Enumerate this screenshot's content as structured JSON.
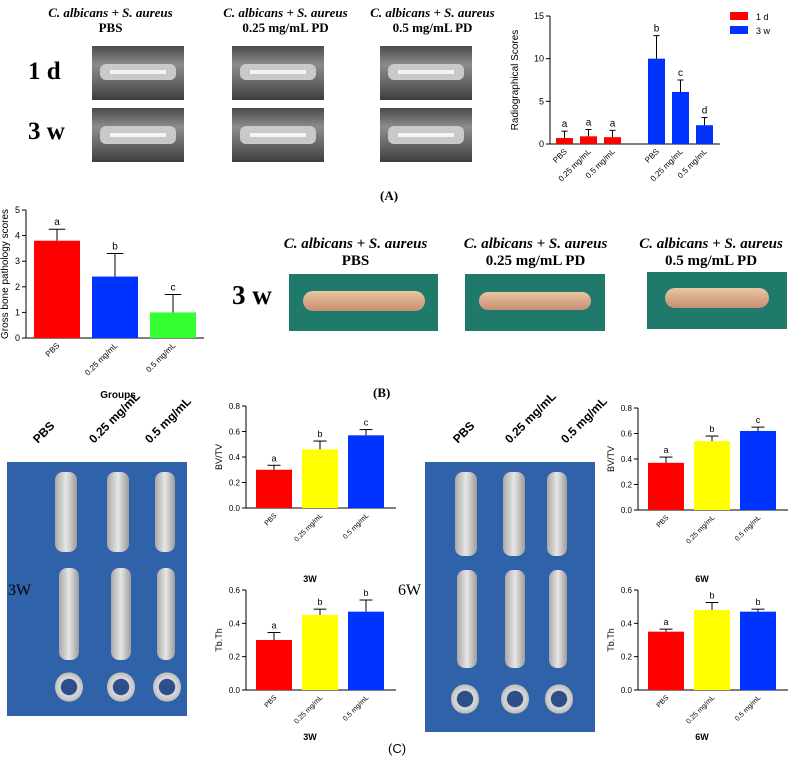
{
  "panelA": {
    "header_prefix": "C. albicans + S. aureus",
    "columns": [
      "PBS",
      "0.25 mg/mL PD",
      "0.5 mg/mL PD"
    ],
    "rows": [
      "1 d",
      "3 w"
    ],
    "caption": "(A)"
  },
  "panelB": {
    "header_prefix": "C. albicans + S. aureus",
    "columns": [
      "PBS",
      "0.25 mg/mL PD",
      "0.5 mg/mL PD"
    ],
    "row_label": "3 w",
    "caption": "(B)"
  },
  "panelC": {
    "groups": [
      "PBS",
      "0.25 mg/mL",
      "0.5 mg/mL"
    ],
    "label_3w": "3W",
    "label_6w": "6W",
    "caption": "(C)"
  },
  "colors": {
    "red": "#ff0000",
    "blue": "#0033ff",
    "green": "#33ff33",
    "yellow": "#ffff00"
  },
  "chart_data": [
    {
      "id": "radiographical",
      "type": "bar",
      "title": "",
      "ylabel": "Radiographical Scores",
      "xlabel": "",
      "ylim": [
        0,
        15
      ],
      "yticks": [
        0,
        5,
        10,
        15
      ],
      "legend": "top-right",
      "series": [
        {
          "name": "1 d",
          "color": "#ff0000",
          "categories": [
            "PBS",
            "0.25 mg/mL",
            "0.5 mg/mL"
          ],
          "values": [
            0.7,
            0.9,
            0.8
          ],
          "errors": [
            0.8,
            0.8,
            0.8
          ],
          "letters": [
            "a",
            "a",
            "a"
          ]
        },
        {
          "name": "3 w",
          "color": "#0033ff",
          "categories": [
            "PBS",
            "0.25 mg/mL",
            "0.5 mg/mL"
          ],
          "values": [
            10.0,
            6.1,
            2.2
          ],
          "errors": [
            2.7,
            1.4,
            0.9
          ],
          "letters": [
            "b",
            "c",
            "d"
          ]
        }
      ]
    },
    {
      "id": "gross",
      "type": "bar",
      "title": "",
      "ylabel": "Gross bone pathology scores",
      "xlabel": "Groups",
      "ylim": [
        0,
        5
      ],
      "yticks": [
        0,
        1,
        2,
        3,
        4,
        5
      ],
      "categories": [
        "PBS",
        "0.25 mg/mL",
        "0.5 mg/mL"
      ],
      "values": [
        3.8,
        2.4,
        1.0
      ],
      "errors": [
        0.45,
        0.9,
        0.7
      ],
      "letters": [
        "a",
        "b",
        "c"
      ],
      "colors": [
        "#ff0000",
        "#0033ff",
        "#33ff33"
      ]
    },
    {
      "id": "bvtv3",
      "type": "bar",
      "title": "",
      "ylabel": "BV/TV",
      "xlabel": "",
      "ylim": [
        0,
        0.8
      ],
      "yticks": [
        0.0,
        0.2,
        0.4,
        0.6,
        0.8
      ],
      "categories": [
        "PBS",
        "0.25 mg/mL",
        "0.5 mg/mL"
      ],
      "values": [
        0.3,
        0.46,
        0.57
      ],
      "errors": [
        0.035,
        0.065,
        0.045
      ],
      "letters": [
        "a",
        "b",
        "c"
      ],
      "colors": [
        "#ff0000",
        "#ffff00",
        "#0033ff"
      ],
      "bottom_label": "3W"
    },
    {
      "id": "tbth3",
      "type": "bar",
      "title": "3W",
      "ylabel": "Tb.Th",
      "xlabel": "3W",
      "ylim": [
        0,
        0.6
      ],
      "yticks": [
        0.0,
        0.2,
        0.4,
        0.6
      ],
      "categories": [
        "PBS",
        "0.25 mg/mL",
        "0.5 mg/mL"
      ],
      "values": [
        0.3,
        0.45,
        0.47
      ],
      "errors": [
        0.045,
        0.035,
        0.07
      ],
      "letters": [
        "a",
        "b",
        "b"
      ],
      "colors": [
        "#ff0000",
        "#ffff00",
        "#0033ff"
      ]
    },
    {
      "id": "bvtv6",
      "type": "bar",
      "title": "",
      "ylabel": "BV/TV",
      "xlabel": "",
      "ylim": [
        0,
        0.8
      ],
      "yticks": [
        0.0,
        0.2,
        0.4,
        0.6,
        0.8
      ],
      "categories": [
        "PBS",
        "0.25 mg/mL",
        "0.5 mg/mL"
      ],
      "values": [
        0.37,
        0.54,
        0.62
      ],
      "errors": [
        0.045,
        0.04,
        0.03
      ],
      "letters": [
        "a",
        "b",
        "c"
      ],
      "colors": [
        "#ff0000",
        "#ffff00",
        "#0033ff"
      ],
      "bottom_label": "6W"
    },
    {
      "id": "tbth6",
      "type": "bar",
      "title": "6W",
      "ylabel": "Tb.Th",
      "xlabel": "6W",
      "ylim": [
        0,
        0.6
      ],
      "yticks": [
        0.0,
        0.2,
        0.4,
        0.6
      ],
      "categories": [
        "PBS",
        "0.25 mg/mL",
        "0.5 mg/mL"
      ],
      "values": [
        0.35,
        0.48,
        0.47
      ],
      "errors": [
        0.015,
        0.045,
        0.015
      ],
      "letters": [
        "a",
        "b",
        "b"
      ],
      "colors": [
        "#ff0000",
        "#ffff00",
        "#0033ff"
      ]
    }
  ]
}
